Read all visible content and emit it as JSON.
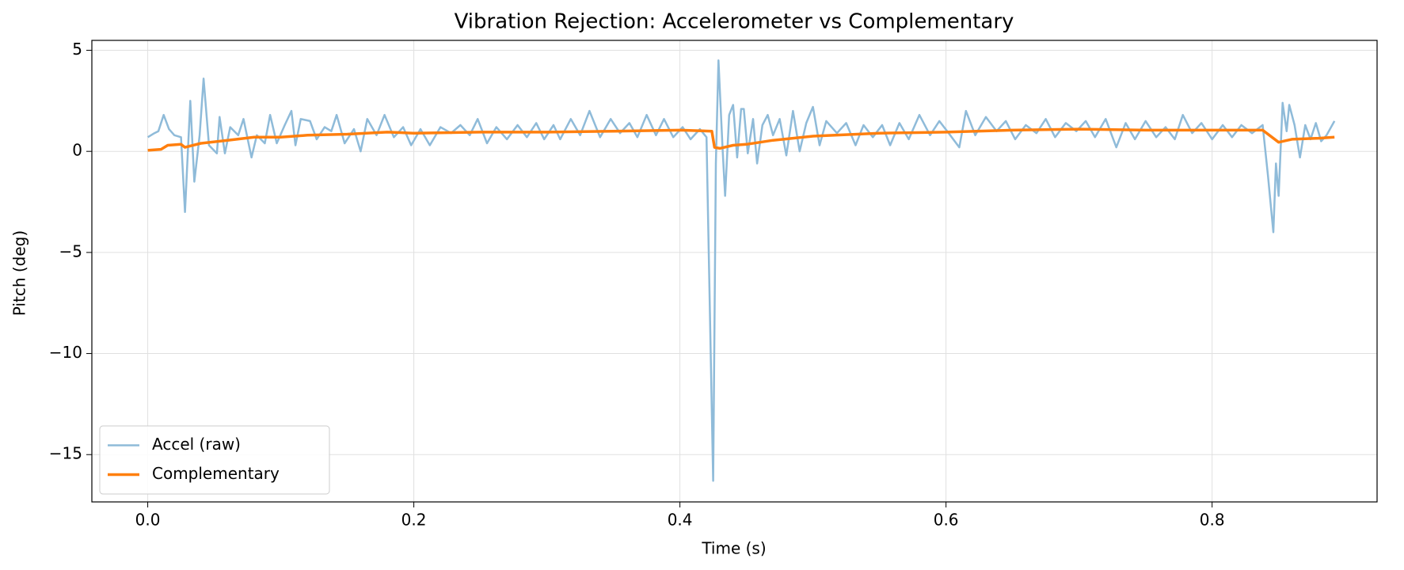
{
  "chart_data": {
    "type": "line",
    "title": "Vibration Rejection: Accelerometer vs Complementary",
    "x_label": "Time (s)",
    "y_label": "Pitch (deg)",
    "xlim": [
      -0.042,
      0.924
    ],
    "ylim": [
      -17.34,
      5.49
    ],
    "xticks": [
      {
        "value": 0,
        "label": "0.0"
      },
      {
        "value": 0.2,
        "label": "0.2"
      },
      {
        "value": 0.4,
        "label": "0.4"
      },
      {
        "value": 0.6,
        "label": "0.6"
      },
      {
        "value": 0.8,
        "label": "0.8"
      }
    ],
    "yticks": [
      5,
      0,
      {
        "value": -5,
        "label": "−5"
      },
      {
        "value": -10,
        "label": "−10"
      },
      {
        "value": -15,
        "label": "−15"
      }
    ],
    "grid": true,
    "legend": "lower left",
    "series": [
      {
        "name": "Accel (raw)",
        "color": "#8fbbd9",
        "width": 2.5,
        "x": [
          0.0,
          0.005,
          0.008,
          0.012,
          0.016,
          0.02,
          0.025,
          0.028,
          0.032,
          0.035,
          0.039,
          0.042,
          0.046,
          0.052,
          0.054,
          0.058,
          0.062,
          0.068,
          0.072,
          0.078,
          0.082,
          0.088,
          0.092,
          0.097,
          0.103,
          0.108,
          0.111,
          0.115,
          0.122,
          0.127,
          0.133,
          0.138,
          0.142,
          0.148,
          0.155,
          0.16,
          0.165,
          0.172,
          0.178,
          0.185,
          0.192,
          0.198,
          0.205,
          0.212,
          0.22,
          0.228,
          0.235,
          0.242,
          0.248,
          0.255,
          0.262,
          0.27,
          0.278,
          0.285,
          0.292,
          0.298,
          0.305,
          0.31,
          0.318,
          0.325,
          0.332,
          0.34,
          0.348,
          0.355,
          0.362,
          0.368,
          0.375,
          0.382,
          0.388,
          0.395,
          0.402,
          0.408,
          0.415,
          0.42,
          0.425,
          0.427,
          0.429,
          0.432,
          0.434,
          0.437,
          0.44,
          0.443,
          0.446,
          0.448,
          0.451,
          0.455,
          0.458,
          0.462,
          0.466,
          0.47,
          0.475,
          0.48,
          0.485,
          0.49,
          0.495,
          0.5,
          0.505,
          0.51,
          0.518,
          0.525,
          0.532,
          0.538,
          0.545,
          0.552,
          0.558,
          0.565,
          0.572,
          0.58,
          0.588,
          0.595,
          0.602,
          0.61,
          0.615,
          0.622,
          0.63,
          0.638,
          0.645,
          0.652,
          0.66,
          0.668,
          0.675,
          0.682,
          0.69,
          0.698,
          0.705,
          0.712,
          0.72,
          0.728,
          0.735,
          0.742,
          0.75,
          0.758,
          0.765,
          0.772,
          0.778,
          0.785,
          0.792,
          0.8,
          0.808,
          0.815,
          0.822,
          0.83,
          0.838,
          0.842,
          0.846,
          0.848,
          0.85,
          0.853,
          0.856,
          0.858,
          0.862,
          0.866,
          0.87,
          0.874,
          0.878,
          0.882,
          0.886,
          0.892
        ],
        "values": [
          0.7,
          0.9,
          1.0,
          1.8,
          1.1,
          0.8,
          0.7,
          -3.0,
          2.5,
          -1.5,
          0.8,
          3.6,
          0.3,
          -0.1,
          1.7,
          -0.1,
          1.2,
          0.8,
          1.6,
          -0.3,
          0.8,
          0.4,
          1.8,
          0.4,
          1.3,
          2.0,
          0.3,
          1.6,
          1.5,
          0.6,
          1.2,
          1.0,
          1.8,
          0.4,
          1.1,
          0.0,
          1.6,
          0.8,
          1.8,
          0.7,
          1.2,
          0.3,
          1.1,
          0.3,
          1.2,
          0.9,
          1.3,
          0.8,
          1.6,
          0.4,
          1.2,
          0.6,
          1.3,
          0.7,
          1.4,
          0.6,
          1.3,
          0.6,
          1.6,
          0.8,
          2.0,
          0.7,
          1.6,
          0.9,
          1.4,
          0.7,
          1.8,
          0.8,
          1.6,
          0.7,
          1.2,
          0.6,
          1.1,
          0.7,
          -16.3,
          -0.6,
          4.5,
          0.2,
          -2.2,
          1.8,
          2.3,
          -0.3,
          2.1,
          2.1,
          -0.1,
          1.6,
          -0.6,
          1.3,
          1.8,
          0.8,
          1.6,
          -0.2,
          2.0,
          0.0,
          1.4,
          2.2,
          0.3,
          1.5,
          0.9,
          1.4,
          0.3,
          1.3,
          0.7,
          1.3,
          0.3,
          1.4,
          0.6,
          1.8,
          0.8,
          1.5,
          0.9,
          0.2,
          2.0,
          0.8,
          1.7,
          1.0,
          1.5,
          0.6,
          1.3,
          0.9,
          1.6,
          0.7,
          1.4,
          1.0,
          1.5,
          0.7,
          1.6,
          0.2,
          1.4,
          0.6,
          1.5,
          0.7,
          1.2,
          0.6,
          1.8,
          0.9,
          1.4,
          0.6,
          1.3,
          0.7,
          1.3,
          0.9,
          1.3,
          -1.2,
          -4.0,
          -0.6,
          -2.2,
          2.4,
          1.0,
          2.3,
          1.3,
          -0.3,
          1.3,
          0.6,
          1.4,
          0.5,
          0.8,
          1.5
        ]
      },
      {
        "name": "Complementary",
        "color": "#ff7f0e",
        "width": 3.5,
        "x": [
          0,
          0.01,
          0.015,
          0.025,
          0.028,
          0.04,
          0.06,
          0.08,
          0.1,
          0.12,
          0.15,
          0.18,
          0.2,
          0.25,
          0.3,
          0.35,
          0.4,
          0.424,
          0.426,
          0.43,
          0.44,
          0.45,
          0.47,
          0.5,
          0.55,
          0.6,
          0.65,
          0.7,
          0.75,
          0.8,
          0.838,
          0.845,
          0.85,
          0.86,
          0.88,
          0.892
        ],
        "values": [
          0.05,
          0.1,
          0.3,
          0.35,
          0.2,
          0.4,
          0.55,
          0.7,
          0.7,
          0.8,
          0.85,
          0.95,
          0.9,
          0.95,
          0.95,
          1.0,
          1.05,
          1.0,
          0.2,
          0.15,
          0.3,
          0.35,
          0.55,
          0.75,
          0.9,
          0.95,
          1.05,
          1.1,
          1.05,
          1.05,
          1.05,
          0.7,
          0.45,
          0.6,
          0.65,
          0.7
        ]
      }
    ]
  }
}
